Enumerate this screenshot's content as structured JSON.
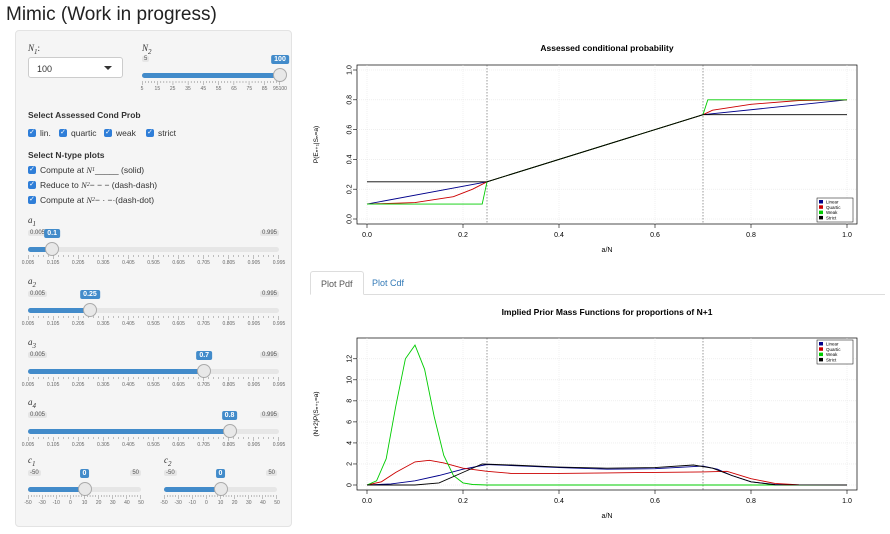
{
  "app": {
    "title": "Mimic (Work in progress)"
  },
  "sidebar": {
    "n1": {
      "label_var": "N",
      "label_sub": "1",
      "label_suffix": ":",
      "selected": "100"
    },
    "n2": {
      "label_var": "N",
      "label_sub": "2",
      "min": "5",
      "max": "100",
      "value": "100",
      "value_fraction": 1.0,
      "tick_labels": [
        "5",
        "15",
        "25",
        "35",
        "45",
        "55",
        "65",
        "75",
        "85",
        "95100"
      ]
    },
    "assessed_title": "Select Assessed Cond Prob",
    "assessed": [
      {
        "label": "lin.",
        "checked": true
      },
      {
        "label": "quartic",
        "checked": true
      },
      {
        "label": "weak",
        "checked": true
      },
      {
        "label": "strict",
        "checked": true
      }
    ],
    "ntype_title": "Select N-type plots",
    "ntype": [
      {
        "prefix": "Compute at ",
        "math": "N",
        "sub": "1",
        "suffix": " _____ (solid)",
        "checked": true
      },
      {
        "prefix": "Reduce to ",
        "math": "N",
        "sub": "2",
        "suffix": " − − − (dash-dash)",
        "checked": true
      },
      {
        "prefix": "Compute at ",
        "math": "N",
        "sub": "2",
        "suffix": " − · −·(dash-dot)",
        "checked": true
      }
    ],
    "a_sliders": [
      {
        "var": "a",
        "sub": "1",
        "min": "0.005",
        "max": "0.995",
        "value": "0.1",
        "value_fraction": 0.096
      },
      {
        "var": "a",
        "sub": "2",
        "min": "0.005",
        "max": "0.995",
        "value": "0.25",
        "value_fraction": 0.247
      },
      {
        "var": "a",
        "sub": "3",
        "min": "0.005",
        "max": "0.995",
        "value": "0.7",
        "value_fraction": 0.702
      },
      {
        "var": "a",
        "sub": "4",
        "min": "0.005",
        "max": "0.995",
        "value": "0.8",
        "value_fraction": 0.803
      }
    ],
    "a_tick_labels": [
      "0.005",
      "0.105",
      "0.205",
      "0.305",
      "0.405",
      "0.505",
      "0.605",
      "0.705",
      "0.805",
      "0.905",
      "0.995"
    ],
    "c_sliders": [
      {
        "var": "c",
        "sub": "1",
        "min": "-50",
        "max": "50",
        "value": "0",
        "value_fraction": 0.5
      },
      {
        "var": "c",
        "sub": "2",
        "min": "-50",
        "max": "50",
        "value": "0",
        "value_fraction": 0.5
      }
    ],
    "c_tick_labels": [
      "-50",
      "-30",
      "-10",
      "0",
      "10",
      "20",
      "30",
      "40",
      "50"
    ]
  },
  "tabs": [
    {
      "label": "Plot Pdf",
      "active": true
    },
    {
      "label": "Plot Cdf",
      "active": false
    }
  ],
  "colors": {
    "linear": "#00008b",
    "quartic": "#cc0000",
    "weak": "#00cc00",
    "strict": "#000000",
    "accent": "#428bca"
  },
  "chart_data": [
    {
      "type": "line",
      "title": "Assessed conditional probability",
      "xlabel": "a/N",
      "ylabel": "P(Eₙ₊₁|Sₙ=a)",
      "xlim": [
        0,
        1
      ],
      "ylim": [
        0,
        1
      ],
      "xticks": [
        "0.0",
        "0.2",
        "0.4",
        "0.6",
        "0.8",
        "1.0"
      ],
      "yticks": [
        "0.0",
        "0.2",
        "0.4",
        "0.6",
        "0.8",
        "1.0"
      ],
      "vlines": [
        0.25,
        0.7
      ],
      "legend": "bottom-right",
      "series": [
        {
          "name": "Linear",
          "x": [
            0,
            0.25,
            0.7,
            1.0
          ],
          "y": [
            0.1,
            0.25,
            0.7,
            0.8
          ]
        },
        {
          "name": "Quartic",
          "x": [
            0,
            0.1,
            0.18,
            0.22,
            0.25,
            0.7,
            0.72,
            0.8,
            0.9,
            1.0
          ],
          "y": [
            0.1,
            0.11,
            0.15,
            0.2,
            0.25,
            0.7,
            0.73,
            0.77,
            0.795,
            0.8
          ]
        },
        {
          "name": "Weak",
          "x": [
            0,
            0.24,
            0.25,
            0.7,
            0.71,
            1.0
          ],
          "y": [
            0.1,
            0.1,
            0.25,
            0.7,
            0.8,
            0.8
          ]
        },
        {
          "name": "Strict",
          "x": [
            0,
            0.25,
            0.7,
            1.0
          ],
          "y": [
            0.25,
            0.25,
            0.7,
            0.7
          ]
        }
      ]
    },
    {
      "type": "line",
      "title": "Implied Prior Mass Functions for proportions of N+1",
      "xlabel": "a/N",
      "ylabel": "(N+2)P(Sₙ₊₁=a)",
      "xlim": [
        0,
        1
      ],
      "ylim": [
        0,
        13.5
      ],
      "xticks": [
        "0.0",
        "0.2",
        "0.4",
        "0.6",
        "0.8",
        "1.0"
      ],
      "yticks": [
        "0",
        "2",
        "4",
        "6",
        "8",
        "10",
        "12"
      ],
      "vlines": [
        0.25,
        0.7
      ],
      "legend": "top-right",
      "series": [
        {
          "name": "Linear",
          "x": [
            0,
            0.05,
            0.1,
            0.15,
            0.2,
            0.25,
            0.3,
            0.4,
            0.5,
            0.6,
            0.7,
            0.73,
            0.76,
            0.8,
            0.85,
            0.9,
            1.0
          ],
          "y": [
            0,
            0.1,
            0.4,
            0.9,
            1.5,
            1.95,
            1.85,
            1.65,
            1.5,
            1.55,
            1.8,
            1.5,
            0.9,
            0.3,
            0.05,
            0,
            0
          ]
        },
        {
          "name": "Quartic",
          "x": [
            0,
            0.03,
            0.06,
            0.1,
            0.13,
            0.16,
            0.2,
            0.25,
            0.3,
            0.4,
            0.5,
            0.6,
            0.7,
            0.75,
            0.8,
            0.85,
            0.9,
            1.0
          ],
          "y": [
            0,
            0.3,
            1.2,
            2.2,
            2.35,
            2.1,
            1.6,
            1.3,
            1.1,
            1.1,
            1.15,
            1.2,
            1.25,
            1.3,
            0.6,
            0.15,
            0.02,
            0
          ]
        },
        {
          "name": "Weak",
          "x": [
            0,
            0.02,
            0.04,
            0.06,
            0.08,
            0.1,
            0.12,
            0.14,
            0.16,
            0.18,
            0.2,
            0.22,
            0.25,
            1.0
          ],
          "y": [
            0,
            0.4,
            2.5,
            7.5,
            12.0,
            13.3,
            11.0,
            6.5,
            2.8,
            0.9,
            0.2,
            0.05,
            0,
            0
          ]
        },
        {
          "name": "Strict",
          "x": [
            0,
            0.1,
            0.15,
            0.2,
            0.24,
            0.3,
            0.4,
            0.5,
            0.6,
            0.68,
            0.72,
            0.76,
            0.8,
            0.85,
            1.0
          ],
          "y": [
            0,
            0,
            0.2,
            1.2,
            2.0,
            1.9,
            1.7,
            1.6,
            1.65,
            1.9,
            1.6,
            0.9,
            0.3,
            0.02,
            0
          ]
        }
      ]
    }
  ]
}
